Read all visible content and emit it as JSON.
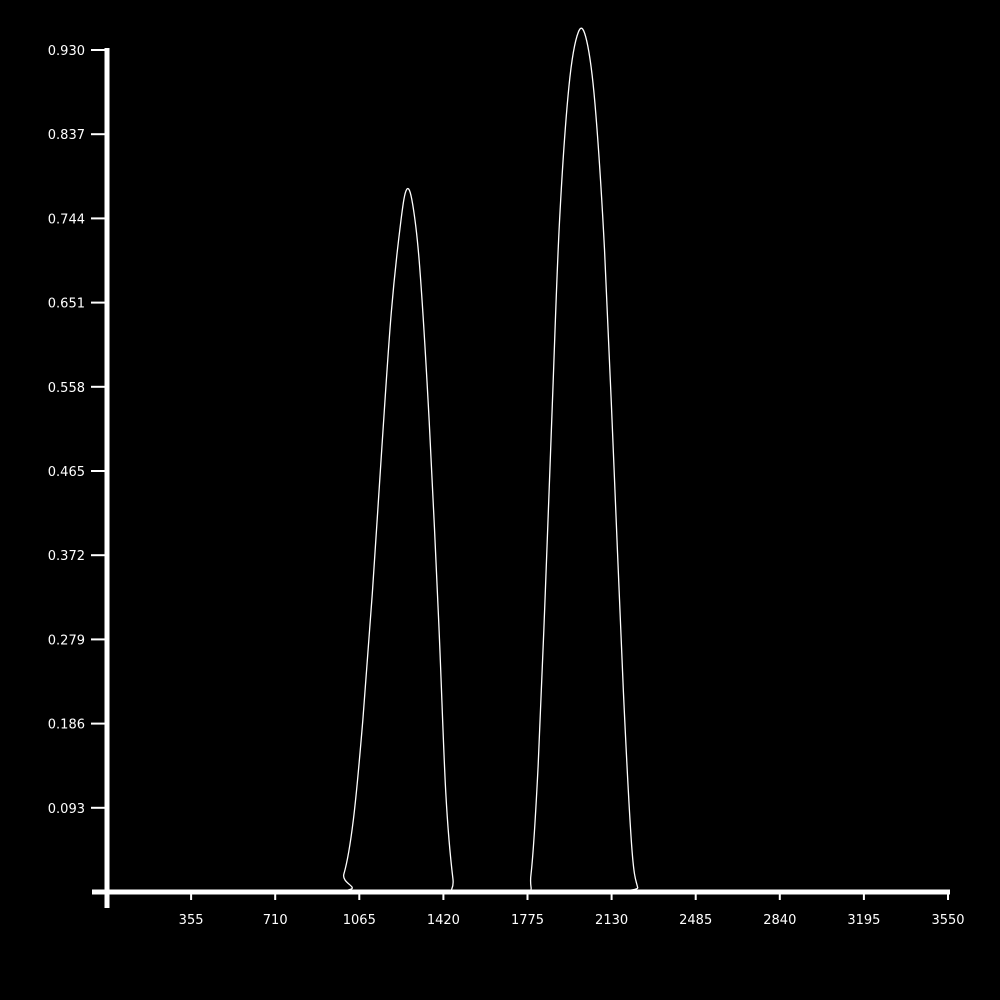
{
  "colors": {
    "background": "#000000",
    "axis": "#ffffff",
    "line": "#ffffff"
  },
  "chart_data": {
    "type": "line",
    "title": "",
    "xlabel": "",
    "ylabel": "",
    "xlim": [
      0,
      3550
    ],
    "ylim": [
      0,
      0.93
    ],
    "grid": false,
    "x_ticks": [
      "355",
      "710",
      "1065",
      "1420",
      "1775",
      "2130",
      "2485",
      "2840",
      "3195",
      "3550"
    ],
    "y_ticks": [
      "0.093",
      "0.186",
      "0.279",
      "0.372",
      "0.465",
      "0.558",
      "0.651",
      "0.744",
      "0.837",
      "0.930"
    ],
    "series": [
      {
        "points": [
          [
            0,
            0
          ],
          [
            950,
            0
          ],
          [
            1000,
            0.02
          ],
          [
            1040,
            0.08
          ],
          [
            1080,
            0.19
          ],
          [
            1120,
            0.33
          ],
          [
            1160,
            0.49
          ],
          [
            1200,
            0.64
          ],
          [
            1240,
            0.74
          ],
          [
            1265,
            0.776
          ],
          [
            1290,
            0.76
          ],
          [
            1320,
            0.69
          ],
          [
            1360,
            0.52
          ],
          [
            1400,
            0.3
          ],
          [
            1430,
            0.11
          ],
          [
            1460,
            0.015
          ],
          [
            1480,
            0
          ],
          [
            1760,
            0
          ],
          [
            1790,
            0.02
          ],
          [
            1820,
            0.14
          ],
          [
            1850,
            0.33
          ],
          [
            1880,
            0.54
          ],
          [
            1910,
            0.74
          ],
          [
            1950,
            0.89
          ],
          [
            1990,
            0.95
          ],
          [
            2025,
            0.94
          ],
          [
            2060,
            0.87
          ],
          [
            2100,
            0.71
          ],
          [
            2140,
            0.47
          ],
          [
            2180,
            0.22
          ],
          [
            2215,
            0.05
          ],
          [
            2240,
            0.005
          ],
          [
            2260,
            0
          ],
          [
            3550,
            0
          ]
        ]
      }
    ]
  }
}
